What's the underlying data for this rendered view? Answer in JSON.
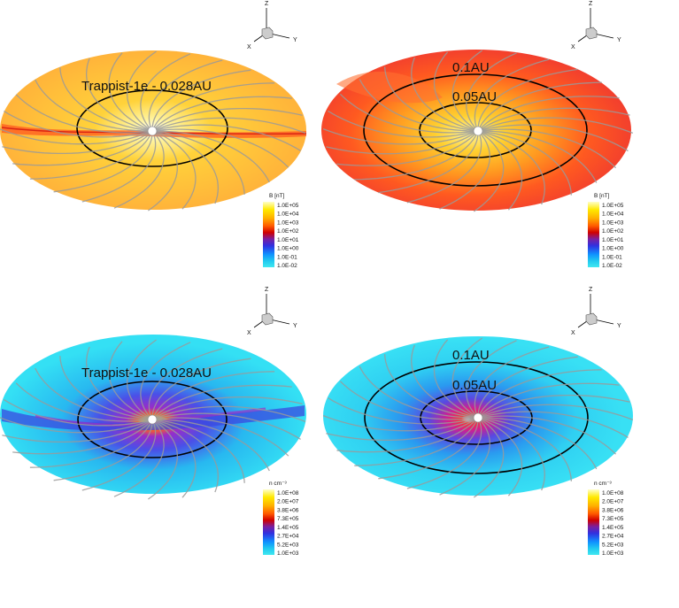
{
  "panels": [
    {
      "id": "tl",
      "label_main": "Trappist-1e - 0.028AU",
      "label_inner": "",
      "colorbar_title": "B [nT]",
      "colorbar_ticks": [
        "1.0E+05",
        "1.0E+04",
        "1.0E+03",
        "1.0E+02",
        "1.0E+01",
        "1.0E+00",
        "1.0E-01",
        "1.0E-02"
      ],
      "theme": "orange"
    },
    {
      "id": "tr",
      "label_main": "0.1AU",
      "label_inner": "0.05AU",
      "colorbar_title": "B [nT]",
      "colorbar_ticks": [
        "1.0E+05",
        "1.0E+04",
        "1.0E+03",
        "1.0E+02",
        "1.0E+01",
        "1.0E+00",
        "1.0E-01",
        "1.0E-02"
      ],
      "theme": "red"
    },
    {
      "id": "bl",
      "label_main": "Trappist-1e - 0.028AU",
      "label_inner": "",
      "colorbar_title": "n cm⁻³",
      "colorbar_ticks": [
        "1.0E+08",
        "2.0E+07",
        "3.8E+06",
        "7.3E+05",
        "1.4E+05",
        "2.7E+04",
        "5.2E+03",
        "1.0E+03"
      ],
      "theme": "cyan"
    },
    {
      "id": "br",
      "label_main": "0.1AU",
      "label_inner": "0.05AU",
      "colorbar_title": "n cm⁻³",
      "colorbar_ticks": [
        "1.0E+08",
        "2.0E+07",
        "3.8E+06",
        "7.3E+05",
        "1.4E+05",
        "2.7E+04",
        "5.2E+03",
        "1.0E+03"
      ],
      "theme": "cyan2"
    }
  ],
  "axes_triad": {
    "x": "X",
    "y": "Y",
    "z": "Z"
  },
  "colorbar_colors": [
    "#ffffc8",
    "#ffe900",
    "#ffb000",
    "#ff5a00",
    "#d00000",
    "#7a1fa0",
    "#3030e0",
    "#1090ff",
    "#20c8f0",
    "#40e8f0"
  ],
  "chart_data": [
    {
      "type": "heatmap",
      "title": "Trappist-1e - 0.028AU",
      "quantity": "B [nT]",
      "levels": [
        "1.0E+05",
        "1.0E+04",
        "1.0E+03",
        "1.0E+02",
        "1.0E+01",
        "1.0E+00",
        "1.0E-01",
        "1.0E-02"
      ]
    },
    {
      "type": "heatmap",
      "annotations": [
        "0.1AU",
        "0.05AU"
      ],
      "quantity": "B [nT]",
      "levels": [
        "1.0E+05",
        "1.0E+04",
        "1.0E+03",
        "1.0E+02",
        "1.0E+01",
        "1.0E+00",
        "1.0E-01",
        "1.0E-02"
      ]
    },
    {
      "type": "heatmap",
      "title": "Trappist-1e - 0.028AU",
      "quantity": "n cm⁻³",
      "levels": [
        "1.0E+08",
        "2.0E+07",
        "3.8E+06",
        "7.3E+05",
        "1.4E+05",
        "2.7E+04",
        "5.2E+03",
        "1.0E+03"
      ]
    },
    {
      "type": "heatmap",
      "annotations": [
        "0.1AU",
        "0.05AU"
      ],
      "quantity": "n cm⁻³",
      "levels": [
        "1.0E+08",
        "2.0E+07",
        "3.8E+06",
        "7.3E+05",
        "1.4E+05",
        "2.7E+04",
        "5.2E+03",
        "1.0E+03"
      ]
    }
  ]
}
